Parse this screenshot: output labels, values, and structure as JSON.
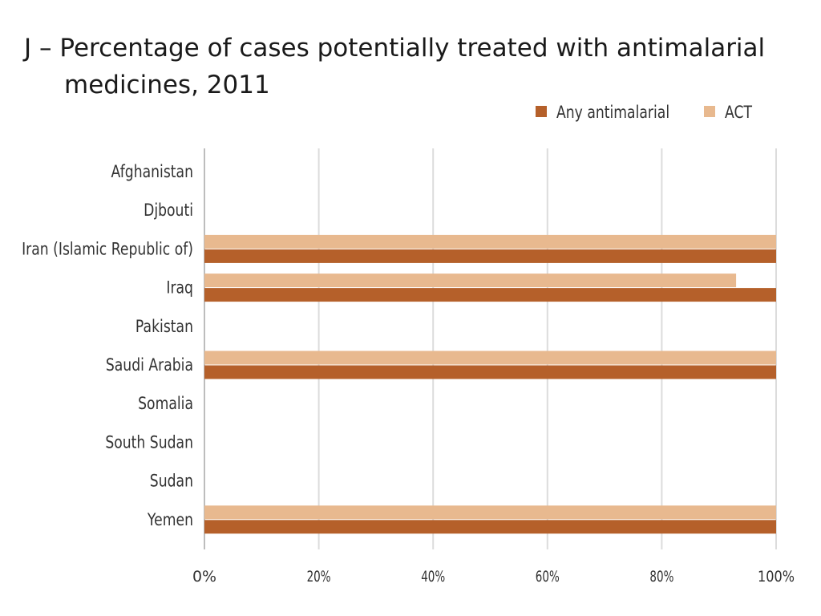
{
  "chart_data": {
    "type": "bar",
    "orientation": "horizontal",
    "title_prefix": "J –",
    "title": "Percentage of cases potentially treated with antimalarial medicines, 2011",
    "title_lines": [
      "J – Percentage of cases potentially treated with antimalarial",
      "medicines, 2011"
    ],
    "categories": [
      "Afghanistan",
      "Djbouti",
      "Iran (Islamic Republic of)",
      "Iraq",
      "Pakistan",
      "Saudi Arabia",
      "Somalia",
      "South Sudan",
      "Sudan",
      "Yemen"
    ],
    "series": [
      {
        "name": "ACT",
        "color": "#e8b98f",
        "values": [
          null,
          null,
          100,
          93,
          null,
          100,
          null,
          null,
          null,
          100
        ]
      },
      {
        "name": "Any antimalarial",
        "color": "#b5602a",
        "values": [
          null,
          null,
          100,
          100,
          null,
          100,
          null,
          null,
          null,
          100
        ]
      }
    ],
    "legend_order": [
      "Any antimalarial",
      "ACT"
    ],
    "legend_position": "top-right",
    "xlim": [
      0,
      100
    ],
    "xticks": [
      "0%",
      "20%",
      "40%",
      "60%",
      "80%",
      "100%"
    ],
    "xlabel": "",
    "ylabel": "",
    "grid": true
  }
}
